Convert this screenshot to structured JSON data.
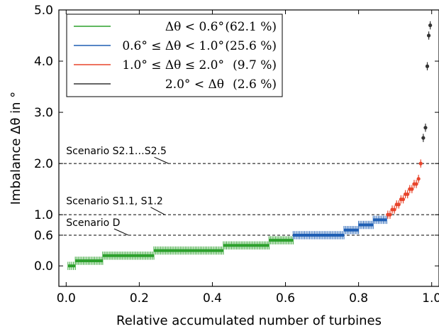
{
  "chart_data": {
    "type": "scatter",
    "xlabel": "Relative accumulated number of turbines",
    "ylabel": "Imbalance Δθ in °",
    "xlim": [
      -0.02,
      1.02
    ],
    "ylim": [
      -0.4,
      5.0
    ],
    "xticks": [
      {
        "value": 0.0,
        "label": "0.0"
      },
      {
        "value": 0.2,
        "label": "0.2"
      },
      {
        "value": 0.4,
        "label": "0.4"
      },
      {
        "value": 0.6,
        "label": "0.6"
      },
      {
        "value": 0.8,
        "label": "0.8"
      },
      {
        "value": 1.0,
        "label": "1.0"
      }
    ],
    "yticks": [
      {
        "value": 0.0,
        "label": "0.0"
      },
      {
        "value": 0.6,
        "label": "0.6"
      },
      {
        "value": 1.0,
        "label": "1.0"
      },
      {
        "value": 2.0,
        "label": "2.0"
      },
      {
        "value": 3.0,
        "label": "3.0"
      },
      {
        "value": 4.0,
        "label": "4.0"
      },
      {
        "value": 5.0,
        "label": "5.0"
      }
    ],
    "grid": false,
    "legend_position": "top-left",
    "error_bar": 0.08,
    "series": [
      {
        "name": "Δθ < 0.6°",
        "share": "(62.1 %)",
        "color": "#2ca02c",
        "x_start": 0.005,
        "x_end": 0.621,
        "steps": [
          {
            "x_end": 0.025,
            "y": 0.0
          },
          {
            "x_end": 0.1,
            "y": 0.1
          },
          {
            "x_end": 0.24,
            "y": 0.2
          },
          {
            "x_end": 0.43,
            "y": 0.3
          },
          {
            "x_end": 0.555,
            "y": 0.4
          },
          {
            "x_end": 0.621,
            "y": 0.5
          }
        ]
      },
      {
        "name": "0.6° ≤ Δθ < 1.0°",
        "share": "(25.6 %)",
        "color": "#1f5fb4",
        "x_start": 0.621,
        "x_end": 0.877,
        "steps": [
          {
            "x_end": 0.76,
            "y": 0.6
          },
          {
            "x_end": 0.8,
            "y": 0.7
          },
          {
            "x_end": 0.84,
            "y": 0.8
          },
          {
            "x_end": 0.877,
            "y": 0.9
          }
        ]
      },
      {
        "name": "1.0° ≤ Δθ ≤ 2.0°",
        "share": "(9.7 %)",
        "color": "#e8452c",
        "points": [
          {
            "x": 0.88,
            "y": 1.0
          },
          {
            "x": 0.886,
            "y": 1.0
          },
          {
            "x": 0.892,
            "y": 1.1
          },
          {
            "x": 0.898,
            "y": 1.1
          },
          {
            "x": 0.904,
            "y": 1.2
          },
          {
            "x": 0.91,
            "y": 1.2
          },
          {
            "x": 0.916,
            "y": 1.3
          },
          {
            "x": 0.922,
            "y": 1.3
          },
          {
            "x": 0.928,
            "y": 1.4
          },
          {
            "x": 0.934,
            "y": 1.4
          },
          {
            "x": 0.94,
            "y": 1.5
          },
          {
            "x": 0.946,
            "y": 1.5
          },
          {
            "x": 0.952,
            "y": 1.6
          },
          {
            "x": 0.958,
            "y": 1.6
          },
          {
            "x": 0.964,
            "y": 1.7
          },
          {
            "x": 0.97,
            "y": 2.0
          }
        ]
      },
      {
        "name": "2.0° < Δθ",
        "share": "(2.6 %)",
        "color": "#333333",
        "points": [
          {
            "x": 0.977,
            "y": 2.5
          },
          {
            "x": 0.983,
            "y": 2.7
          },
          {
            "x": 0.988,
            "y": 3.9
          },
          {
            "x": 0.992,
            "y": 4.5
          },
          {
            "x": 0.996,
            "y": 4.7
          }
        ]
      }
    ],
    "annotations": [
      {
        "label": "Scenario S2.1…S2.5",
        "line_y": 2.0,
        "text_x": 0.0,
        "text_y": 2.18,
        "arrow_x": 0.28
      },
      {
        "label": "Scenario S1.1, S1.2",
        "line_y": 1.0,
        "text_x": 0.0,
        "text_y": 1.2,
        "arrow_x": 0.27
      },
      {
        "label": "Scenario D",
        "line_y": 0.6,
        "text_x": 0.0,
        "text_y": 0.78,
        "arrow_x": 0.17
      }
    ]
  }
}
